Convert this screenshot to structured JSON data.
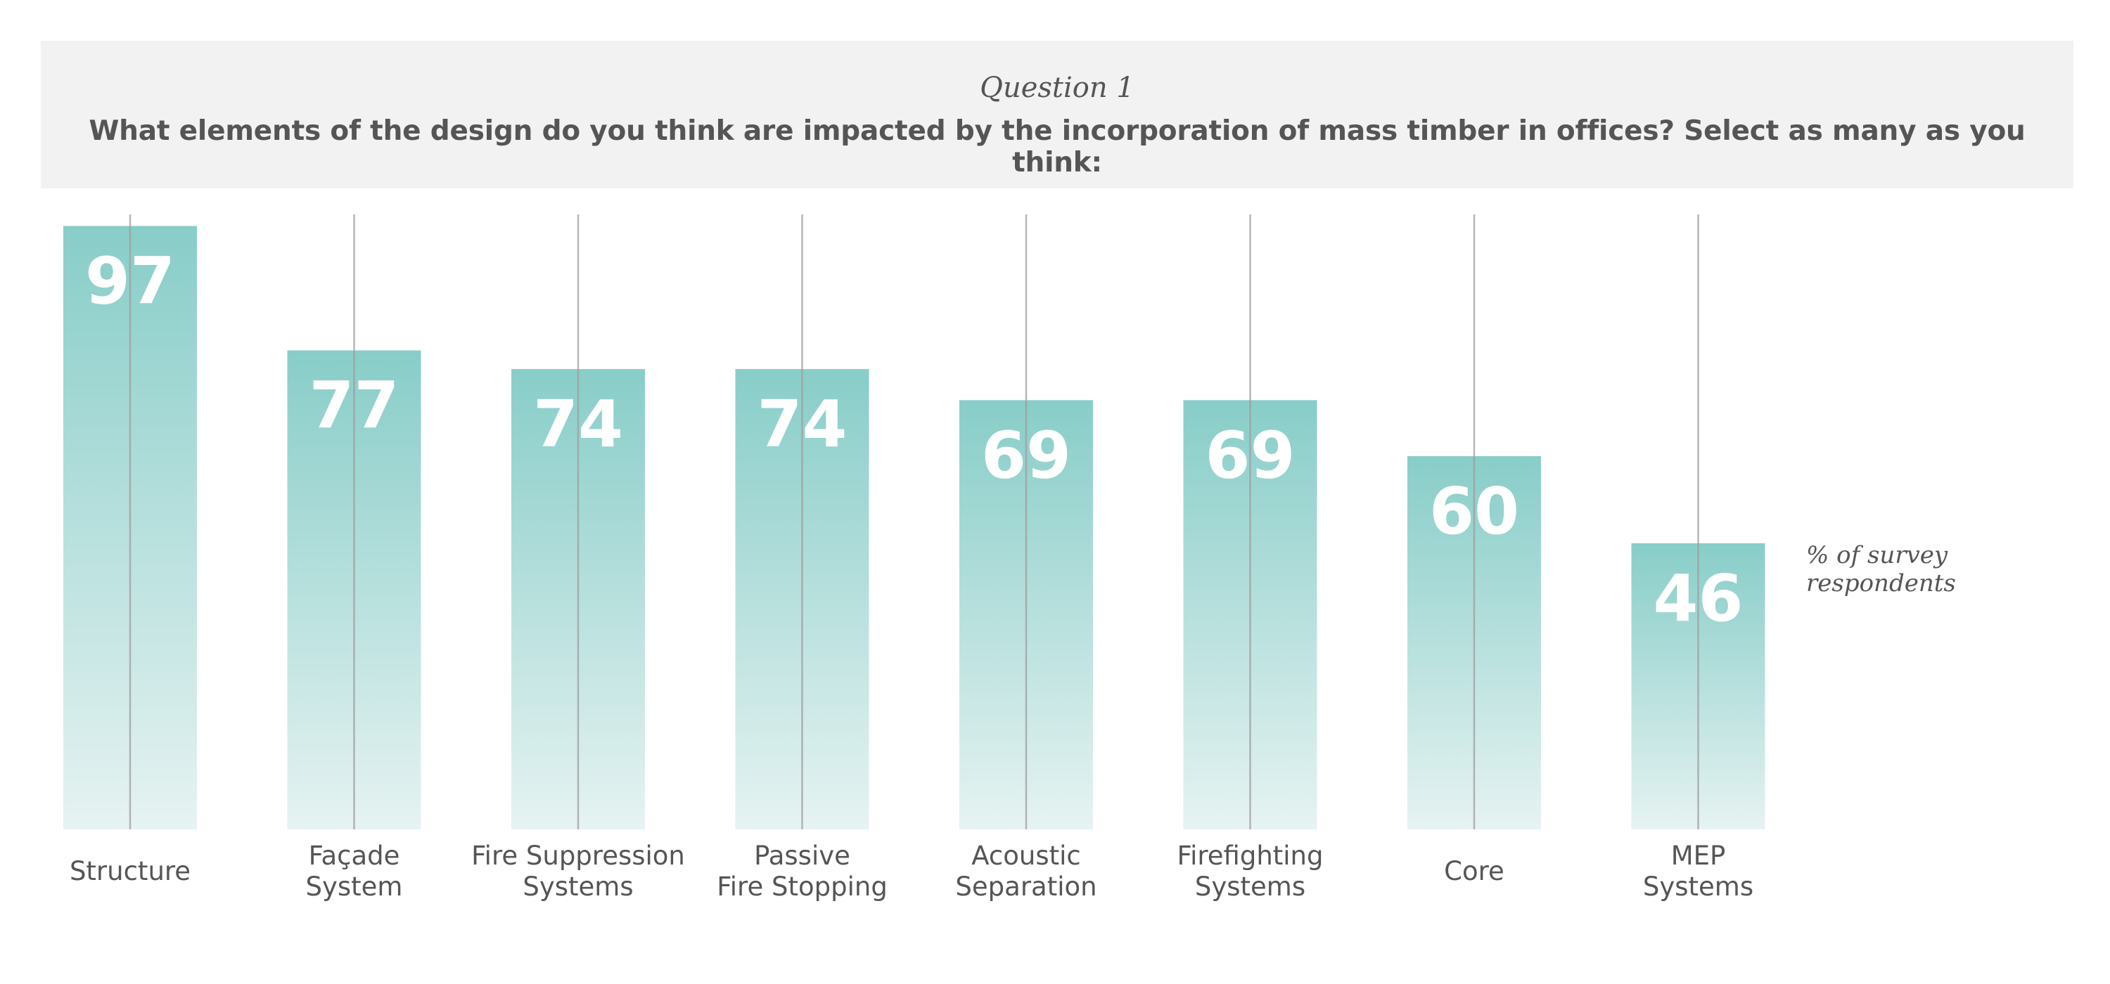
{
  "header": {
    "question_label": "Question 1",
    "question_text": "What elements of the design do you think are impacted by the incorporation of mass timber in offices? Select as many as you think:"
  },
  "chart_data": {
    "type": "bar",
    "categories": [
      [
        "Structure"
      ],
      [
        "Façade",
        "System"
      ],
      [
        "Fire Suppression",
        "Systems"
      ],
      [
        "Passive",
        "Fire Stopping"
      ],
      [
        "Acoustic",
        "Separation"
      ],
      [
        "Firefighting",
        "Systems"
      ],
      [
        "Core"
      ],
      [
        "MEP",
        "Systems"
      ]
    ],
    "values": [
      97,
      77,
      74,
      74,
      69,
      69,
      60,
      46
    ],
    "unit_label": "% of survey respondents",
    "ylim": [
      0,
      100
    ],
    "grid": false,
    "legend": "none",
    "colors": {
      "bar_top": "#88cdc8",
      "bar_bottom": "#e6f3f2",
      "value_text": "#ffffff",
      "category_text": "#555555",
      "line": "#9e9e9e"
    }
  }
}
